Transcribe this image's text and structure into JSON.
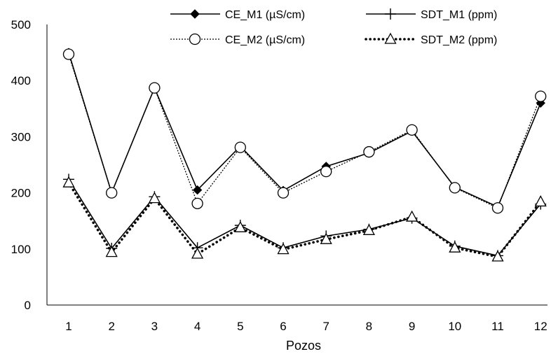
{
  "chart_data": {
    "type": "line",
    "title": "",
    "xlabel": "Pozos",
    "ylabel": "",
    "categories": [
      "1",
      "2",
      "3",
      "4",
      "5",
      "6",
      "7",
      "8",
      "9",
      "10",
      "11",
      "12"
    ],
    "ylim": [
      0,
      500
    ],
    "yticks": [
      "0",
      "100",
      "200",
      "300",
      "400",
      "500"
    ],
    "grid": false,
    "legend_position": "top",
    "series": [
      {
        "name": "CE_M1 (µS/cm)",
        "values": [
          450,
          200,
          387,
          205,
          283,
          204,
          247,
          271,
          310,
          210,
          175,
          360
        ],
        "line": "solid",
        "marker": "diamond-filled",
        "color": "#000000"
      },
      {
        "name": "SDT_M1 (ppm)",
        "values": [
          224,
          101,
          193,
          102,
          142,
          102,
          123,
          135,
          155,
          105,
          88,
          180
        ],
        "line": "solid",
        "marker": "plus",
        "color": "#000000"
      },
      {
        "name": "CE_M2 (µS/cm)",
        "values": [
          447,
          200,
          387,
          181,
          281,
          200,
          238,
          273,
          312,
          209,
          173,
          372
        ],
        "line": "dotted-thin",
        "marker": "circle-open",
        "color": "#000000"
      },
      {
        "name": "SDT_M2 (ppm)",
        "values": [
          218,
          94,
          190,
          91,
          138,
          99,
          117,
          133,
          157,
          102,
          86,
          184
        ],
        "line": "dotted-thick",
        "marker": "triangle-open",
        "color": "#000000"
      }
    ]
  }
}
